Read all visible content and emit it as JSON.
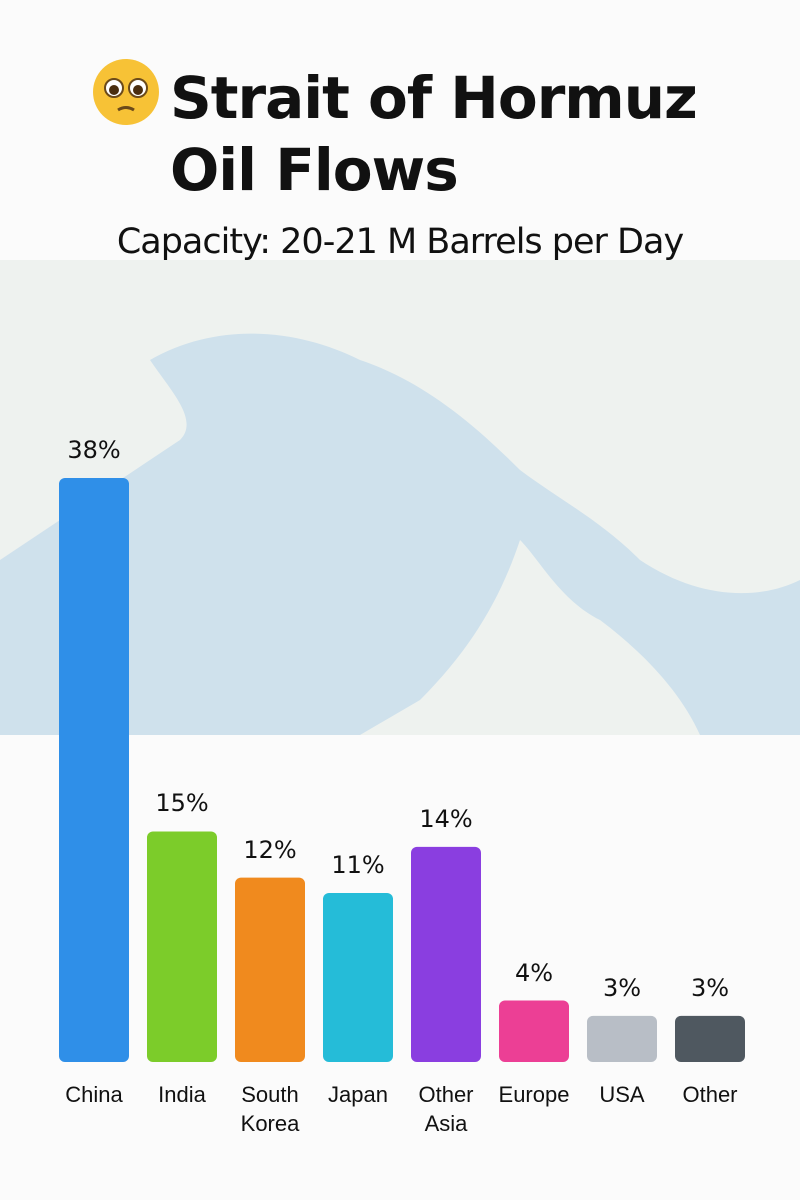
{
  "chart_data": {
    "type": "bar",
    "title": "Strait of Hormuz Oil Flows",
    "subtitle": "Capacity: 20-21 M Barrels per Day",
    "categories": [
      "China",
      "India",
      "South Korea",
      "Japan",
      "Other Asia",
      "Europe",
      "USA",
      "Other"
    ],
    "values": [
      38,
      15,
      12,
      11,
      14,
      4,
      3,
      3
    ],
    "value_labels": [
      "38%",
      "15%",
      "12%",
      "11%",
      "14%",
      "4%",
      "3%",
      "3%"
    ],
    "colors": [
      "#2f8fe8",
      "#7ccc2a",
      "#f08a1e",
      "#25bcd8",
      "#8a3ee0",
      "#ec3f95",
      "#b8bec6",
      "#4f5860"
    ]
  }
}
